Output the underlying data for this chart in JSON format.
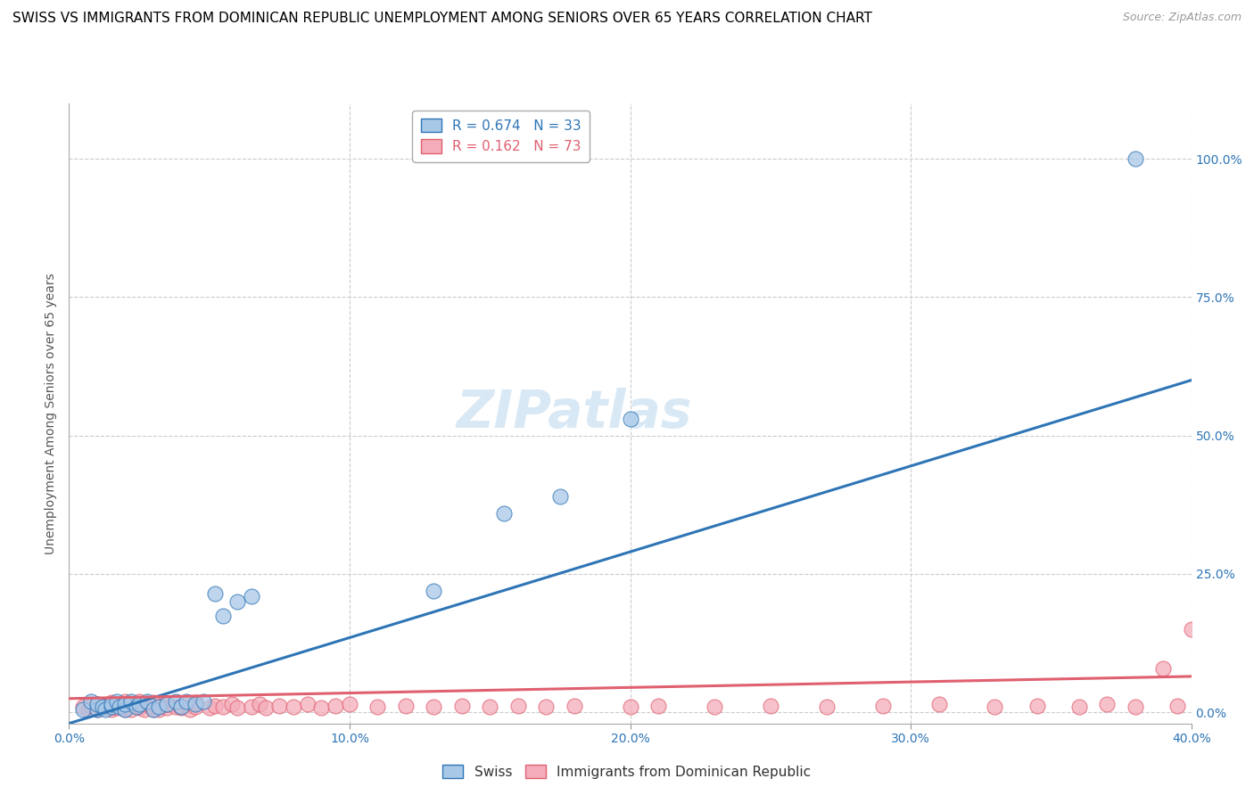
{
  "title": "SWISS VS IMMIGRANTS FROM DOMINICAN REPUBLIC UNEMPLOYMENT AMONG SENIORS OVER 65 YEARS CORRELATION CHART",
  "source": "Source: ZipAtlas.com",
  "ylabel": "Unemployment Among Seniors over 65 years",
  "xlim": [
    0.0,
    0.4
  ],
  "ylim": [
    -0.02,
    1.1
  ],
  "xticks": [
    0.0,
    0.1,
    0.2,
    0.3,
    0.4
  ],
  "xtick_labels": [
    "0.0%",
    "10.0%",
    "20.0%",
    "30.0%",
    "40.0%"
  ],
  "ytick_labels_right": [
    "0.0%",
    "25.0%",
    "50.0%",
    "75.0%",
    "100.0%"
  ],
  "yticks_right": [
    0.0,
    0.25,
    0.5,
    0.75,
    1.0
  ],
  "swiss_R": 0.674,
  "swiss_N": 33,
  "dr_R": 0.162,
  "dr_N": 73,
  "swiss_color": "#A8C8E8",
  "dr_color": "#F4ACBA",
  "swiss_line_color": "#2E75B6",
  "dr_line_color": "#E06070",
  "background_color": "#FFFFFF",
  "grid_color": "#CCCCCC",
  "watermark": "ZIPatlas",
  "title_fontsize": 11,
  "swiss_x": [
    0.005,
    0.008,
    0.01,
    0.01,
    0.012,
    0.013,
    0.015,
    0.015,
    0.017,
    0.018,
    0.02,
    0.02,
    0.022,
    0.024,
    0.025,
    0.028,
    0.03,
    0.032,
    0.035,
    0.038,
    0.04,
    0.042,
    0.045,
    0.048,
    0.052,
    0.055,
    0.06,
    0.065,
    0.13,
    0.155,
    0.175,
    0.2,
    0.38
  ],
  "swiss_y": [
    0.005,
    0.02,
    0.005,
    0.015,
    0.01,
    0.005,
    0.01,
    0.015,
    0.02,
    0.01,
    0.005,
    0.015,
    0.02,
    0.01,
    0.015,
    0.02,
    0.005,
    0.01,
    0.015,
    0.02,
    0.01,
    0.02,
    0.015,
    0.02,
    0.215,
    0.175,
    0.2,
    0.21,
    0.22,
    0.36,
    0.39,
    0.53,
    1.0
  ],
  "dr_x": [
    0.005,
    0.007,
    0.008,
    0.01,
    0.01,
    0.012,
    0.013,
    0.015,
    0.015,
    0.015,
    0.017,
    0.018,
    0.02,
    0.02,
    0.02,
    0.022,
    0.022,
    0.025,
    0.025,
    0.025,
    0.027,
    0.028,
    0.03,
    0.03,
    0.03,
    0.032,
    0.033,
    0.035,
    0.035,
    0.038,
    0.04,
    0.04,
    0.042,
    0.043,
    0.045,
    0.045,
    0.05,
    0.052,
    0.055,
    0.058,
    0.06,
    0.065,
    0.068,
    0.07,
    0.075,
    0.08,
    0.085,
    0.09,
    0.095,
    0.1,
    0.11,
    0.12,
    0.13,
    0.14,
    0.15,
    0.16,
    0.17,
    0.18,
    0.2,
    0.21,
    0.23,
    0.25,
    0.27,
    0.29,
    0.31,
    0.33,
    0.345,
    0.36,
    0.37,
    0.38,
    0.39,
    0.395,
    0.4
  ],
  "dr_y": [
    0.01,
    0.005,
    0.012,
    0.005,
    0.015,
    0.008,
    0.012,
    0.005,
    0.01,
    0.018,
    0.008,
    0.015,
    0.005,
    0.01,
    0.02,
    0.005,
    0.015,
    0.008,
    0.012,
    0.02,
    0.005,
    0.015,
    0.005,
    0.01,
    0.018,
    0.005,
    0.012,
    0.008,
    0.015,
    0.01,
    0.008,
    0.012,
    0.015,
    0.005,
    0.01,
    0.018,
    0.008,
    0.012,
    0.01,
    0.015,
    0.008,
    0.01,
    0.015,
    0.008,
    0.012,
    0.01,
    0.015,
    0.008,
    0.012,
    0.015,
    0.01,
    0.012,
    0.01,
    0.012,
    0.01,
    0.012,
    0.01,
    0.012,
    0.01,
    0.012,
    0.01,
    0.012,
    0.01,
    0.012,
    0.015,
    0.01,
    0.012,
    0.01,
    0.015,
    0.01,
    0.08,
    0.012,
    0.15
  ],
  "swiss_line_x0": 0.0,
  "swiss_line_y0": -0.02,
  "swiss_line_x1": 0.4,
  "swiss_line_y1": 0.6,
  "dr_line_x0": 0.0,
  "dr_line_y0": 0.025,
  "dr_line_x1": 0.4,
  "dr_line_y1": 0.065
}
